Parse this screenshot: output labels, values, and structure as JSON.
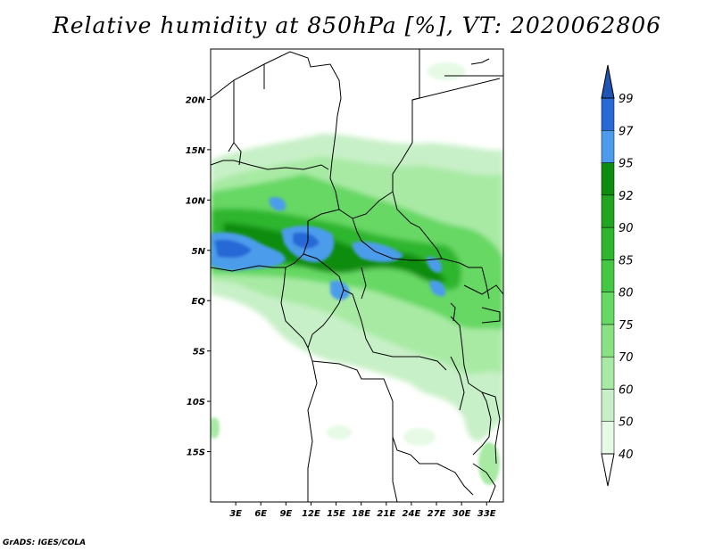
{
  "title": "Relative humidity at 850hPa [%], VT: 2020062806",
  "credit": "GrADS: IGES/COLA",
  "map": {
    "lat_labels": [
      "20N",
      "15N",
      "10N",
      "5N",
      "EQ",
      "5S",
      "10S",
      "15S"
    ],
    "lat_values": [
      20,
      15,
      10,
      5,
      0,
      -5,
      -10,
      -15
    ],
    "lon_labels": [
      "3E",
      "6E",
      "9E",
      "12E",
      "15E",
      "18E",
      "21E",
      "24E",
      "27E",
      "30E",
      "33E"
    ],
    "lon_values": [
      3,
      6,
      9,
      12,
      15,
      18,
      21,
      24,
      27,
      30,
      33
    ],
    "lon_range": [
      0,
      35
    ],
    "lat_range": [
      -20,
      25
    ]
  },
  "colorbar": {
    "levels": [
      "40",
      "50",
      "60",
      "70",
      "75",
      "80",
      "85",
      "90",
      "92",
      "95",
      "97",
      "99"
    ],
    "colors": [
      "#ffffff",
      "#e6fae6",
      "#c8f0c8",
      "#a8eaa4",
      "#88e284",
      "#66d864",
      "#44c844",
      "#2eb62e",
      "#21a521",
      "#0f8c0f",
      "#4c9ceb",
      "#2769d6",
      "#1f54b4"
    ]
  }
}
